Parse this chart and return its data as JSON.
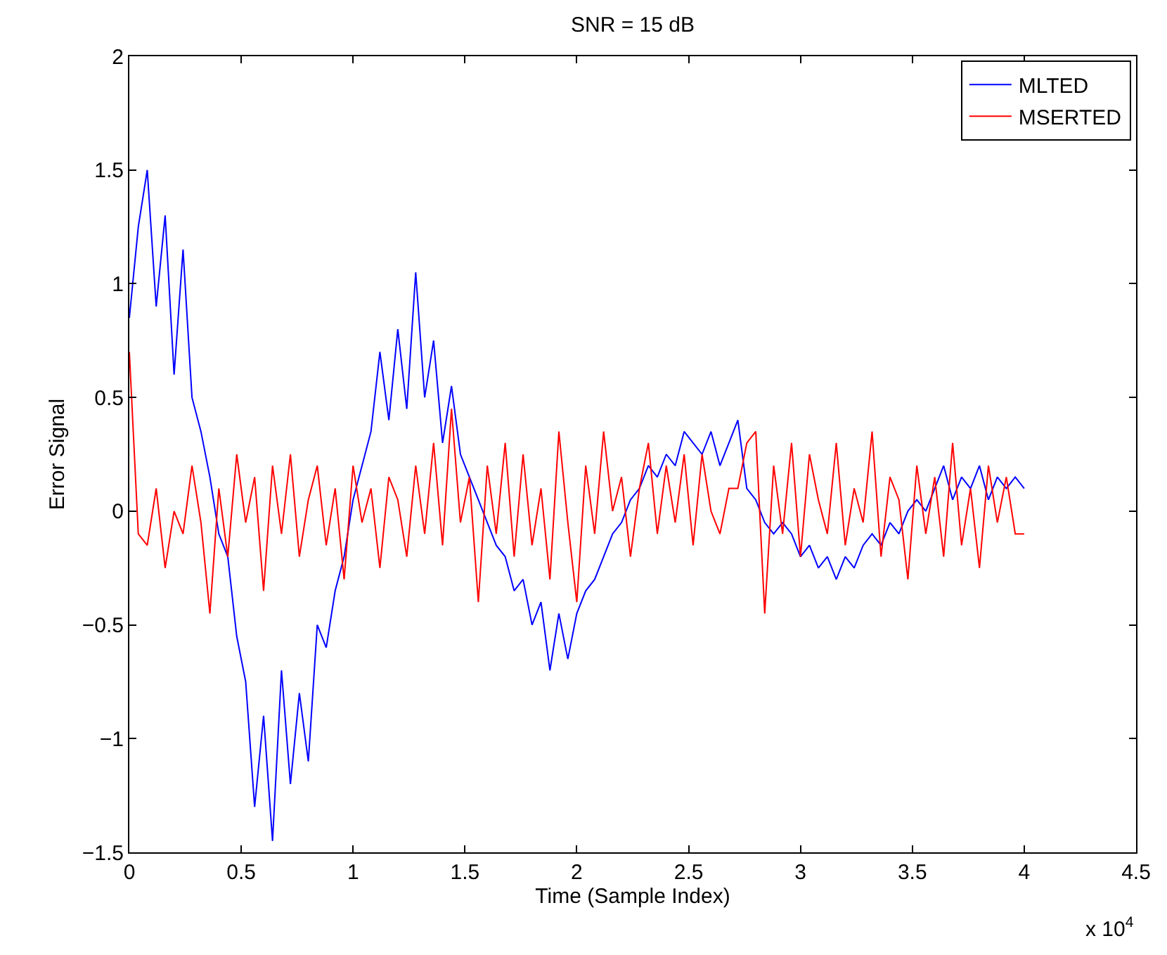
{
  "chart_data": {
    "type": "line",
    "title": "SNR = 15 dB",
    "xlabel": "Time (Sample Index)",
    "ylabel": "Error Signal",
    "annotations": [
      "x 10$^{4}$"
    ],
    "x": [
      0,
      0.04,
      0.08,
      0.12,
      0.16,
      0.2,
      0.24,
      0.28,
      0.32,
      0.36,
      0.4,
      0.44,
      0.48,
      0.52,
      0.56,
      0.6,
      0.64,
      0.68,
      0.72,
      0.76,
      0.8,
      0.84,
      0.88,
      0.92,
      0.96,
      1.0,
      1.04,
      1.08,
      1.12,
      1.16,
      1.2,
      1.24,
      1.28,
      1.32,
      1.36,
      1.4,
      1.44,
      1.48,
      1.52,
      1.56,
      1.6,
      1.64,
      1.68,
      1.72,
      1.76,
      1.8,
      1.84,
      1.88,
      1.92,
      1.96,
      2.0,
      2.04,
      2.08,
      2.12,
      2.16,
      2.2,
      2.24,
      2.28,
      2.32,
      2.36,
      2.4,
      2.44,
      2.48,
      2.52,
      2.56,
      2.6,
      2.64,
      2.68,
      2.72,
      2.76,
      2.8,
      2.84,
      2.88,
      2.92,
      2.96,
      3.0,
      3.04,
      3.08,
      3.12,
      3.16,
      3.2,
      3.24,
      3.28,
      3.32,
      3.36,
      3.4,
      3.44,
      3.48,
      3.52,
      3.56,
      3.6,
      3.64,
      3.68,
      3.72,
      3.76,
      3.8,
      3.84,
      3.88,
      3.92,
      3.96,
      4.0
    ],
    "series": [
      {
        "name": "MLTED",
        "color": "#0000ff",
        "values": [
          0.85,
          1.25,
          1.5,
          0.9,
          1.3,
          0.6,
          1.15,
          0.5,
          0.35,
          0.15,
          -0.1,
          -0.2,
          -0.55,
          -0.75,
          -1.3,
          -0.9,
          -1.45,
          -0.7,
          -1.2,
          -0.8,
          -1.1,
          -0.5,
          -0.6,
          -0.35,
          -0.2,
          0.05,
          0.2,
          0.35,
          0.7,
          0.4,
          0.8,
          0.45,
          1.05,
          0.5,
          0.75,
          0.3,
          0.55,
          0.25,
          0.15,
          0.05,
          -0.05,
          -0.15,
          -0.2,
          -0.35,
          -0.3,
          -0.5,
          -0.4,
          -0.7,
          -0.45,
          -0.65,
          -0.45,
          -0.35,
          -0.3,
          -0.2,
          -0.1,
          -0.05,
          0.05,
          0.1,
          0.2,
          0.15,
          0.25,
          0.2,
          0.35,
          0.3,
          0.25,
          0.35,
          0.2,
          0.3,
          0.4,
          0.1,
          0.05,
          -0.05,
          -0.1,
          -0.05,
          -0.1,
          -0.2,
          -0.15,
          -0.25,
          -0.2,
          -0.3,
          -0.2,
          -0.25,
          -0.15,
          -0.1,
          -0.15,
          -0.05,
          -0.1,
          0.0,
          0.05,
          0.0,
          0.1,
          0.2,
          0.05,
          0.15,
          0.1,
          0.2,
          0.05,
          0.15,
          0.1,
          0.15,
          0.1
        ]
      },
      {
        "name": "MSERTED",
        "color": "#ff0000",
        "values": [
          0.7,
          -0.1,
          -0.15,
          0.1,
          -0.25,
          0.0,
          -0.1,
          0.2,
          -0.05,
          -0.45,
          0.1,
          -0.2,
          0.25,
          -0.05,
          0.15,
          -0.35,
          0.2,
          -0.1,
          0.25,
          -0.2,
          0.05,
          0.2,
          -0.15,
          0.1,
          -0.3,
          0.2,
          -0.05,
          0.1,
          -0.25,
          0.15,
          0.05,
          -0.2,
          0.2,
          -0.1,
          0.3,
          -0.15,
          0.45,
          -0.05,
          0.15,
          -0.4,
          0.2,
          -0.1,
          0.3,
          -0.2,
          0.25,
          -0.15,
          0.1,
          -0.3,
          0.35,
          -0.05,
          -0.4,
          0.2,
          -0.1,
          0.35,
          0.0,
          0.15,
          -0.2,
          0.1,
          0.3,
          -0.1,
          0.2,
          -0.05,
          0.25,
          -0.15,
          0.25,
          0.0,
          -0.1,
          0.1,
          0.1,
          0.3,
          0.35,
          -0.45,
          0.2,
          -0.1,
          0.3,
          -0.2,
          0.25,
          0.05,
          -0.1,
          0.3,
          -0.15,
          0.1,
          -0.05,
          0.35,
          -0.2,
          0.15,
          0.05,
          -0.3,
          0.2,
          -0.1,
          0.15,
          -0.2,
          0.3,
          -0.15,
          0.1,
          -0.25,
          0.2,
          -0.05,
          0.15,
          -0.1,
          -0.1
        ]
      }
    ],
    "xlim": [
      0,
      4.5
    ],
    "xticks": [
      0,
      0.5,
      1,
      1.5,
      2,
      2.5,
      3,
      3.5,
      4,
      4.5
    ],
    "ylim": [
      -1.5,
      2
    ],
    "yticks": [
      -1.5,
      -1,
      -0.5,
      0,
      0.5,
      1,
      1.5,
      2
    ],
    "grid": false,
    "legend": "top right",
    "marker": "none",
    "line_style": "solid"
  }
}
